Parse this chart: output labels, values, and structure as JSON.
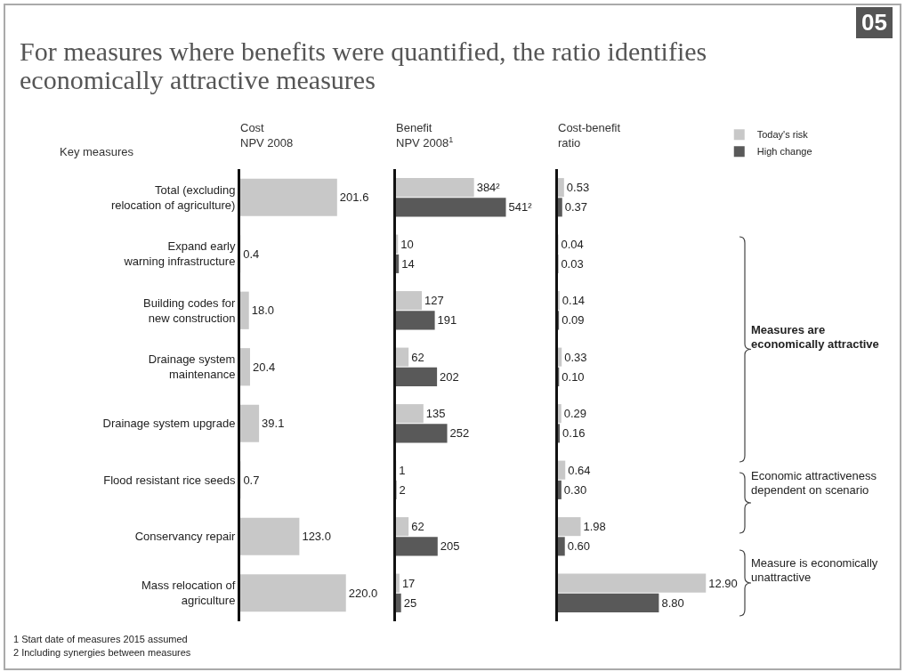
{
  "chart_data": [
    {
      "type": "bar",
      "orientation": "horizontal",
      "title": "Cost\nNPV 2008",
      "ylabel": "Key measures",
      "categories": [
        "Total (excluding\nrelocation of agriculture)",
        "Expand early\nwarning infrastructure",
        "Building codes for\nnew construction",
        "Drainage system\nmaintenance",
        "Drainage system upgrade",
        "Flood resistant rice seeds",
        "Conservancy repair",
        "Mass relocation of\nagriculture"
      ],
      "series": [
        {
          "color": "#c8c8c8",
          "values": [
            201.6,
            0.4,
            18.0,
            20.4,
            39.1,
            0.7,
            123.0,
            220.0
          ],
          "value_labels": [
            "201.6",
            "0.4",
            "18.0",
            "20.4",
            "39.1",
            "0.7",
            "123.0",
            "220.0"
          ]
        }
      ],
      "tick_labels": "y",
      "legend": false
    },
    {
      "type": "bar",
      "orientation": "horizontal",
      "title": "Benefit\nNPV 2008$^{1}$",
      "series": [
        {
          "color": "#c8c8c8",
          "values": [
            384,
            10,
            127,
            62,
            135,
            1,
            62,
            17
          ],
          "value_labels": [
            "384²",
            "10",
            "127",
            "62",
            "135",
            "1",
            "62",
            "17"
          ]
        },
        {
          "color": "#595959",
          "values": [
            541,
            14,
            191,
            202,
            252,
            2,
            205,
            25
          ],
          "value_labels": [
            "541²",
            "14",
            "191",
            "202",
            "252",
            "2",
            "205",
            "25"
          ]
        }
      ],
      "tick_labels": false,
      "legend": false
    },
    {
      "type": "bar",
      "orientation": "horizontal",
      "title": "Cost-benefit\nratio",
      "series": [
        {
          "name": "Today's risk",
          "color": "#c8c8c8",
          "values": [
            0.53,
            0.04,
            0.14,
            0.33,
            0.29,
            0.64,
            1.98,
            12.9
          ],
          "value_labels": [
            "0.53",
            "0.04",
            "0.14",
            "0.33",
            "0.29",
            "0.64",
            "1.98",
            "12.90"
          ]
        },
        {
          "name": "High change",
          "color": "#595959",
          "values": [
            0.37,
            0.03,
            0.09,
            0.1,
            0.16,
            0.3,
            0.6,
            8.8
          ],
          "value_labels": [
            "0.37",
            "0.03",
            "0.09",
            "0.10",
            "0.16",
            "0.30",
            "0.60",
            "8.80"
          ]
        }
      ],
      "tick_labels": false,
      "legend": "top right"
    },
    {
      "type": "other",
      "title": "For measures where benefits were quantified, the ratio identifies economically attractive measures",
      "annotations": [
        "05",
        "Measures are economically attractive",
        "Economic attractiveness dependent on scenario",
        "Measure is economically unattractive",
        "1 Start date of measures 2015 assumed",
        "2 Including synergies between measures"
      ]
    }
  ]
}
